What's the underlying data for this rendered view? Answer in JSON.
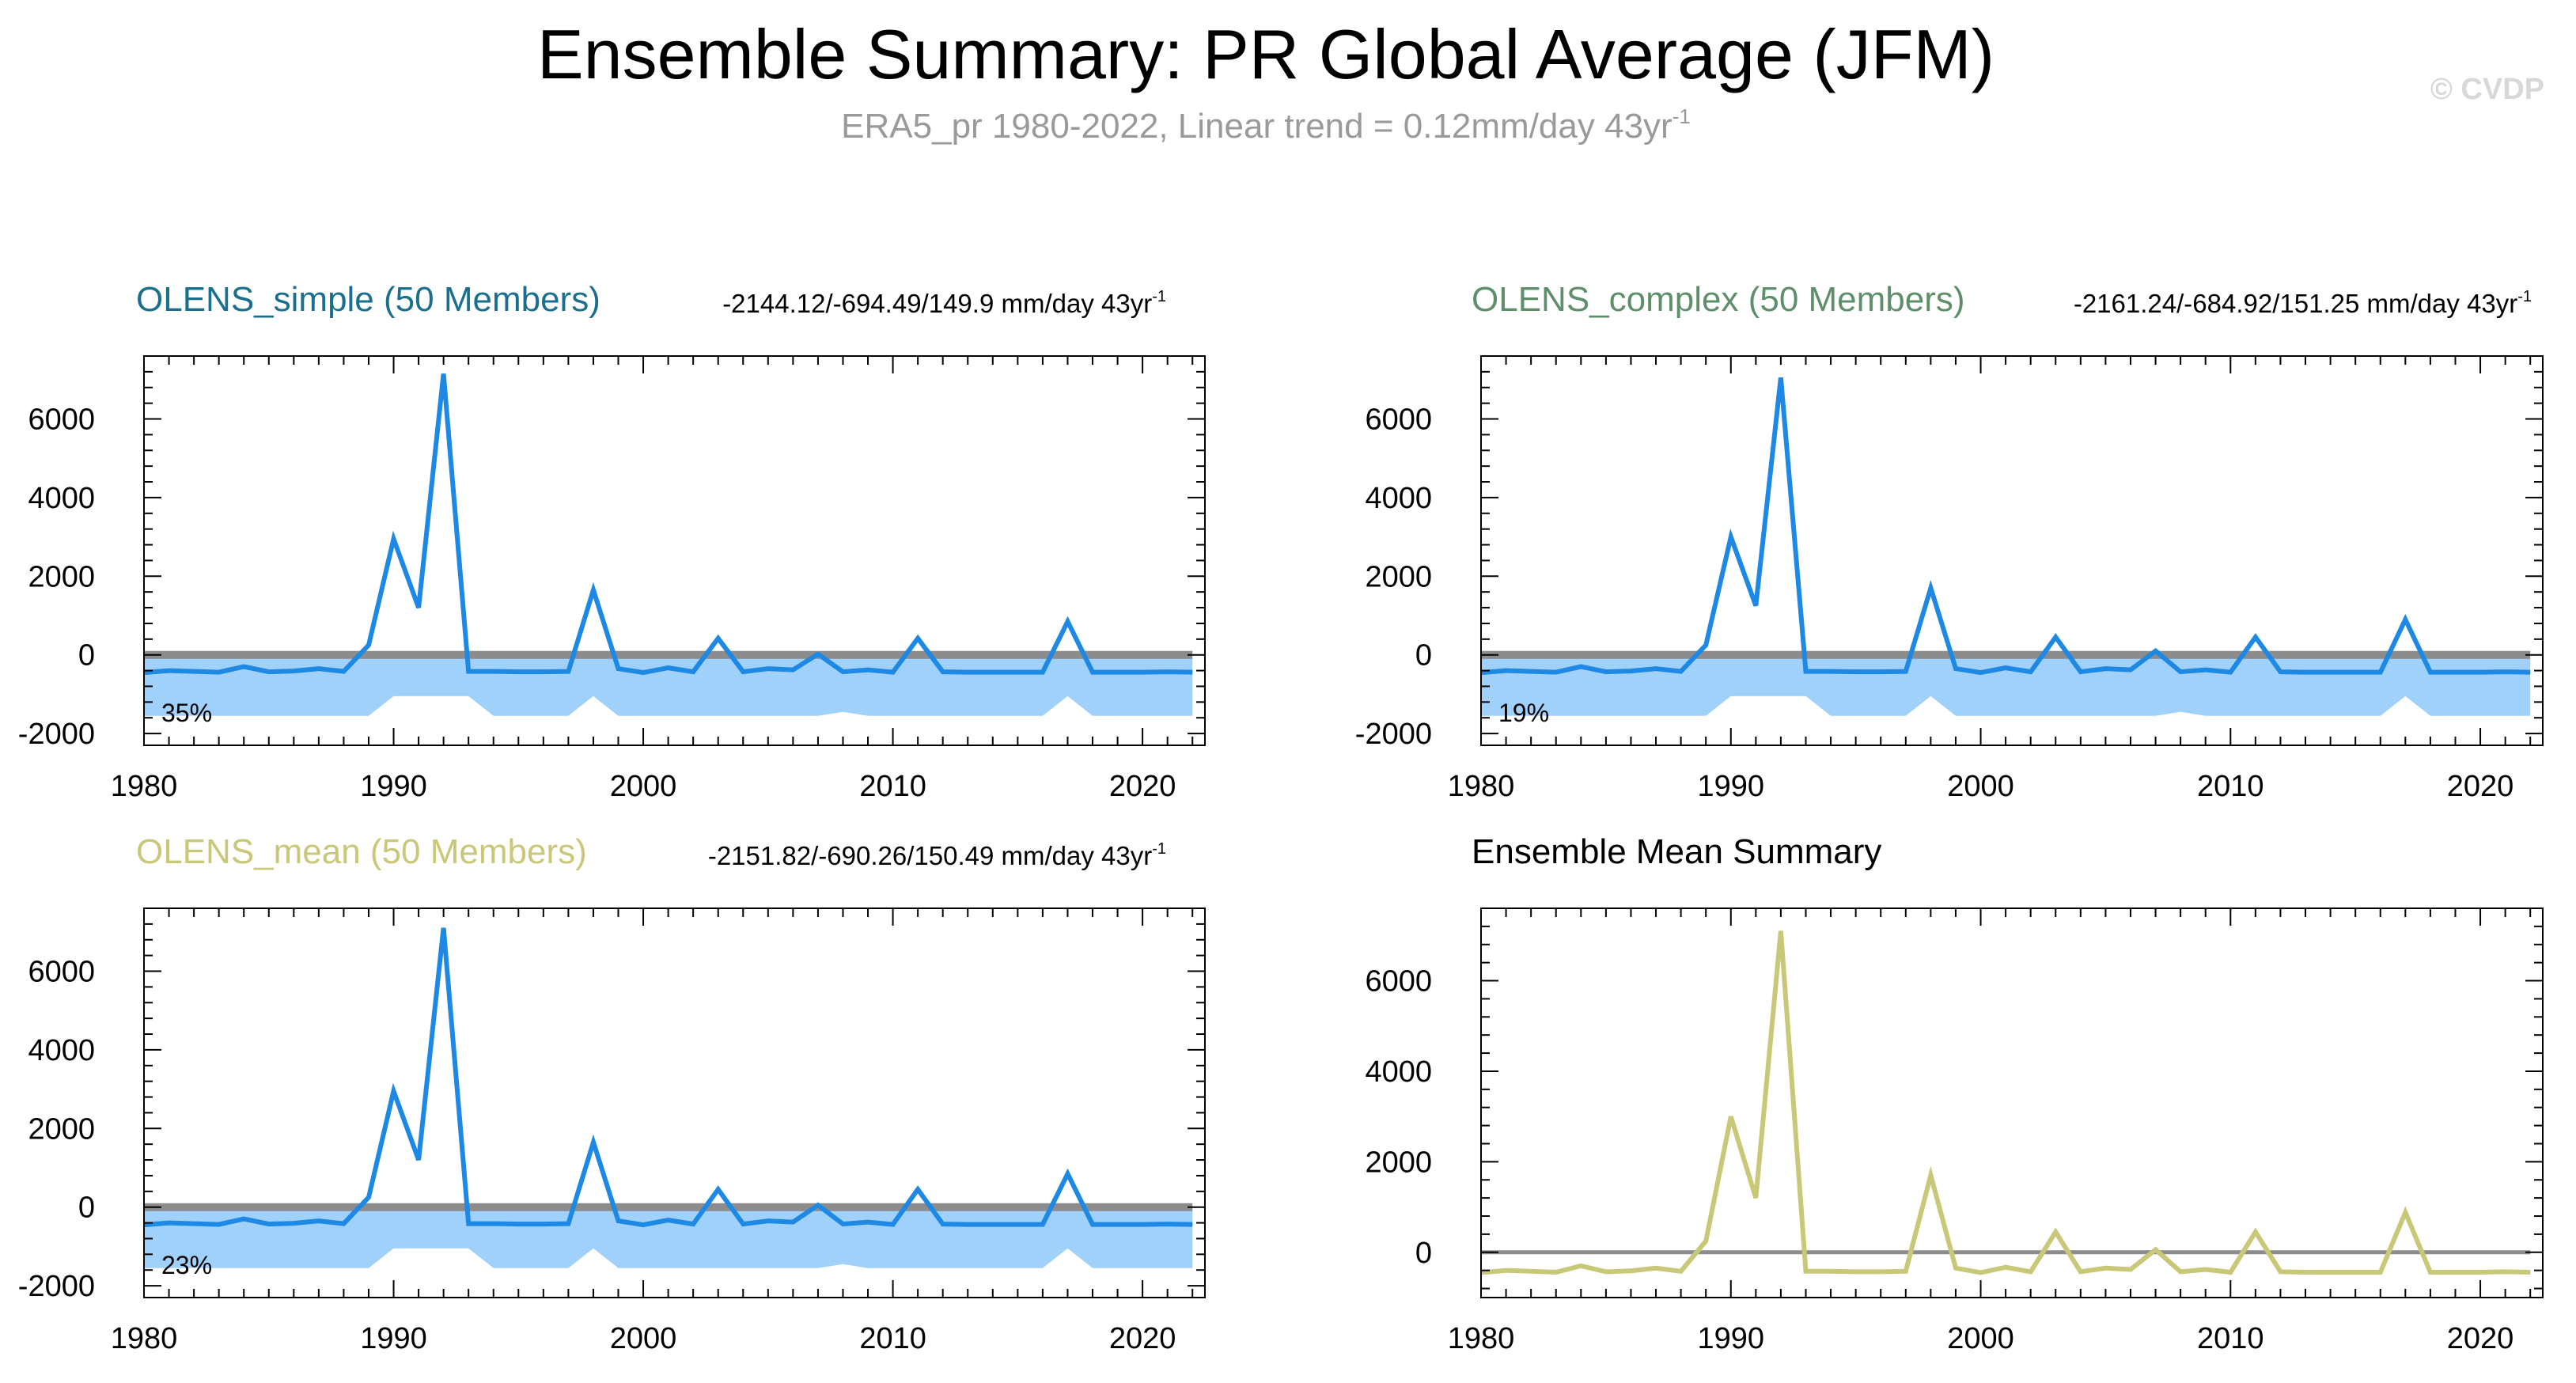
{
  "title": "Ensemble Summary: PR Global Average (JFM)",
  "subtitle": {
    "text": "ERA5_pr 1980-2022, Linear trend = 0.12mm/day 43yr",
    "exp": "-1"
  },
  "watermark": "© CVDP",
  "colors": {
    "obs_line": "#1e88e5",
    "spread_fill": "#9fd1fb",
    "zero_line": "#8c8c8c",
    "mean_line": "#c9c778",
    "olens_simple": "#1a6e8e",
    "olens_complex": "#5e8f6a",
    "olens_mean": "#c9c778"
  },
  "panels": [
    {
      "title": "OLENS_simple (50 Members)",
      "stat": "-2144.12/-694.49/149.9 mm/day 43yr",
      "stat_exp": "-1",
      "percent": "35%"
    },
    {
      "title": "OLENS_complex (50 Members)",
      "stat": "-2161.24/-684.92/151.25 mm/day 43yr",
      "stat_exp": "-1",
      "percent": "19%"
    },
    {
      "title": "OLENS_mean (50 Members)",
      "stat": "-2151.82/-690.26/150.49 mm/day 43yr",
      "stat_exp": "-1",
      "percent": "23%"
    },
    {
      "title": "Ensemble Mean Summary",
      "stat": "",
      "stat_exp": "",
      "percent": ""
    }
  ],
  "chart_data": [
    {
      "type": "line",
      "panel": "OLENS_simple (50 Members)",
      "x": [
        1980,
        1981,
        1982,
        1983,
        1984,
        1985,
        1986,
        1987,
        1988,
        1989,
        1990,
        1991,
        1992,
        1993,
        1994,
        1995,
        1996,
        1997,
        1998,
        1999,
        2000,
        2001,
        2002,
        2003,
        2004,
        2005,
        2006,
        2007,
        2008,
        2009,
        2010,
        2011,
        2012,
        2013,
        2014,
        2015,
        2016,
        2017,
        2018,
        2019,
        2020,
        2021,
        2022
      ],
      "xlim": [
        1980,
        2022.5
      ],
      "ylim": [
        -2300,
        7600
      ],
      "yticks": [
        -2000,
        0,
        2000,
        4000,
        6000
      ],
      "xticks": [
        1980,
        1990,
        2000,
        2010,
        2020
      ],
      "series": [
        {
          "values": [
            -450,
            -400,
            -420,
            -440,
            -300,
            -430,
            -410,
            -350,
            -420,
            250,
            2950,
            1200,
            7150,
            -420,
            -420,
            -430,
            -430,
            -420,
            1650,
            -350,
            -450,
            -330,
            -430,
            420,
            -430,
            -350,
            -380,
            20,
            -430,
            -380,
            -440,
            420,
            -430,
            -440,
            -440,
            -440,
            -440,
            850,
            -440,
            -440,
            -440,
            -430,
            -440
          ]
        }
      ],
      "spread_upper": [
        -50,
        -50,
        -50,
        -50,
        -50,
        -50,
        -50,
        -50,
        -50,
        -50,
        -30,
        -10,
        -20,
        -50,
        -50,
        -50,
        -50,
        -50,
        -30,
        -50,
        -50,
        -50,
        -50,
        -40,
        -50,
        -50,
        -50,
        -40,
        -50,
        -50,
        -50,
        -40,
        -50,
        -50,
        -50,
        -50,
        -50,
        -30,
        -50,
        -50,
        -50,
        -50,
        -50
      ],
      "spread_lower": [
        -1550,
        -1550,
        -1550,
        -1550,
        -1550,
        -1550,
        -1550,
        -1550,
        -1550,
        -1550,
        -1050,
        -1050,
        -1050,
        -1050,
        -1550,
        -1550,
        -1550,
        -1550,
        -1050,
        -1550,
        -1550,
        -1550,
        -1550,
        -1550,
        -1550,
        -1550,
        -1550,
        -1550,
        -1450,
        -1550,
        -1550,
        -1550,
        -1550,
        -1550,
        -1550,
        -1550,
        -1550,
        -1050,
        -1550,
        -1550,
        -1550,
        -1550,
        -1550
      ]
    },
    {
      "type": "line",
      "panel": "OLENS_complex (50 Members)",
      "x": [
        1980,
        1981,
        1982,
        1983,
        1984,
        1985,
        1986,
        1987,
        1988,
        1989,
        1990,
        1991,
        1992,
        1993,
        1994,
        1995,
        1996,
        1997,
        1998,
        1999,
        2000,
        2001,
        2002,
        2003,
        2004,
        2005,
        2006,
        2007,
        2008,
        2009,
        2010,
        2011,
        2012,
        2013,
        2014,
        2015,
        2016,
        2017,
        2018,
        2019,
        2020,
        2021,
        2022
      ],
      "xlim": [
        1980,
        2022.5
      ],
      "ylim": [
        -2300,
        7600
      ],
      "yticks": [
        -2000,
        0,
        2000,
        4000,
        6000
      ],
      "xticks": [
        1980,
        1990,
        2000,
        2010,
        2020
      ],
      "series": [
        {
          "values": [
            -450,
            -400,
            -420,
            -440,
            -300,
            -430,
            -410,
            -350,
            -420,
            250,
            3000,
            1250,
            7050,
            -420,
            -420,
            -430,
            -430,
            -420,
            1700,
            -350,
            -450,
            -330,
            -430,
            450,
            -430,
            -350,
            -380,
            100,
            -430,
            -380,
            -440,
            450,
            -430,
            -440,
            -440,
            -440,
            -440,
            900,
            -440,
            -440,
            -440,
            -430,
            -440
          ]
        }
      ],
      "spread_upper": [
        -50,
        -50,
        -50,
        -50,
        -50,
        -50,
        -50,
        -50,
        -50,
        -50,
        -30,
        -10,
        -20,
        -50,
        -50,
        -50,
        -50,
        -50,
        -30,
        -50,
        -50,
        -50,
        -50,
        -40,
        -50,
        -50,
        -50,
        -40,
        -50,
        -50,
        -50,
        -40,
        -50,
        -50,
        -50,
        -50,
        -50,
        -30,
        -50,
        -50,
        -50,
        -50,
        -50
      ],
      "spread_lower": [
        -1550,
        -1550,
        -1550,
        -1550,
        -1550,
        -1550,
        -1550,
        -1550,
        -1550,
        -1550,
        -1050,
        -1050,
        -1050,
        -1050,
        -1550,
        -1550,
        -1550,
        -1550,
        -1050,
        -1550,
        -1550,
        -1550,
        -1550,
        -1550,
        -1550,
        -1550,
        -1550,
        -1550,
        -1450,
        -1550,
        -1550,
        -1550,
        -1550,
        -1550,
        -1550,
        -1550,
        -1550,
        -1050,
        -1550,
        -1550,
        -1550,
        -1550,
        -1550
      ]
    },
    {
      "type": "line",
      "panel": "OLENS_mean (50 Members)",
      "x": [
        1980,
        1981,
        1982,
        1983,
        1984,
        1985,
        1986,
        1987,
        1988,
        1989,
        1990,
        1991,
        1992,
        1993,
        1994,
        1995,
        1996,
        1997,
        1998,
        1999,
        2000,
        2001,
        2002,
        2003,
        2004,
        2005,
        2006,
        2007,
        2008,
        2009,
        2010,
        2011,
        2012,
        2013,
        2014,
        2015,
        2016,
        2017,
        2018,
        2019,
        2020,
        2021,
        2022
      ],
      "xlim": [
        1980,
        2022.5
      ],
      "ylim": [
        -2300,
        7600
      ],
      "yticks": [
        -2000,
        0,
        2000,
        4000,
        6000
      ],
      "xticks": [
        1980,
        1990,
        2000,
        2010,
        2020
      ],
      "series": [
        {
          "values": [
            -450,
            -400,
            -420,
            -440,
            -300,
            -430,
            -410,
            -350,
            -420,
            250,
            2950,
            1200,
            7100,
            -420,
            -420,
            -430,
            -430,
            -420,
            1650,
            -350,
            -450,
            -330,
            -430,
            450,
            -430,
            -350,
            -380,
            50,
            -430,
            -380,
            -440,
            450,
            -430,
            -440,
            -440,
            -440,
            -440,
            850,
            -440,
            -440,
            -440,
            -430,
            -440
          ]
        }
      ],
      "spread_upper": [
        -50,
        -50,
        -50,
        -50,
        -50,
        -50,
        -50,
        -50,
        -50,
        -50,
        -30,
        -10,
        -20,
        -50,
        -50,
        -50,
        -50,
        -50,
        -30,
        -50,
        -50,
        -50,
        -50,
        -40,
        -50,
        -50,
        -50,
        -40,
        -50,
        -50,
        -50,
        -40,
        -50,
        -50,
        -50,
        -50,
        -50,
        -30,
        -50,
        -50,
        -50,
        -50,
        -50
      ],
      "spread_lower": [
        -1550,
        -1550,
        -1550,
        -1550,
        -1550,
        -1550,
        -1550,
        -1550,
        -1550,
        -1550,
        -1050,
        -1050,
        -1050,
        -1050,
        -1550,
        -1550,
        -1550,
        -1550,
        -1050,
        -1550,
        -1550,
        -1550,
        -1550,
        -1550,
        -1550,
        -1550,
        -1550,
        -1550,
        -1450,
        -1550,
        -1550,
        -1550,
        -1550,
        -1550,
        -1550,
        -1550,
        -1550,
        -1050,
        -1550,
        -1550,
        -1550,
        -1550,
        -1550
      ]
    },
    {
      "type": "line",
      "panel": "Ensemble Mean Summary",
      "x": [
        1980,
        1981,
        1982,
        1983,
        1984,
        1985,
        1986,
        1987,
        1988,
        1989,
        1990,
        1991,
        1992,
        1993,
        1994,
        1995,
        1996,
        1997,
        1998,
        1999,
        2000,
        2001,
        2002,
        2003,
        2004,
        2005,
        2006,
        2007,
        2008,
        2009,
        2010,
        2011,
        2012,
        2013,
        2014,
        2015,
        2016,
        2017,
        2018,
        2019,
        2020,
        2021,
        2022
      ],
      "xlim": [
        1980,
        2022.5
      ],
      "ylim": [
        -1000,
        7600
      ],
      "yticks": [
        0,
        2000,
        4000,
        6000
      ],
      "xticks": [
        1980,
        1990,
        2000,
        2010,
        2020
      ],
      "series": [
        {
          "values": [
            -450,
            -400,
            -420,
            -440,
            -300,
            -430,
            -410,
            -350,
            -420,
            250,
            3000,
            1200,
            7100,
            -420,
            -420,
            -430,
            -430,
            -420,
            1700,
            -350,
            -450,
            -330,
            -430,
            450,
            -430,
            -350,
            -380,
            60,
            -430,
            -380,
            -440,
            450,
            -430,
            -440,
            -440,
            -440,
            -440,
            880,
            -440,
            -440,
            -440,
            -430,
            -440
          ]
        }
      ]
    }
  ]
}
